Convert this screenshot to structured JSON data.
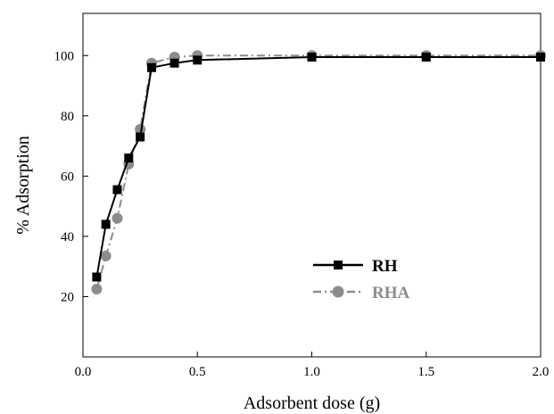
{
  "chart_data": {
    "type": "line",
    "title": "",
    "xlabel": "Adsorbent dose (g)",
    "ylabel": "% Adsorption",
    "xlim": [
      0.0,
      2.0
    ],
    "ylim": [
      0,
      114
    ],
    "xticks": [
      0.0,
      0.5,
      1.0,
      1.5,
      2.0
    ],
    "xtick_labels": [
      "0.0",
      "0.5",
      "1.0",
      "1.5",
      "2.0"
    ],
    "yticks": [
      20,
      40,
      60,
      80,
      100
    ],
    "ytick_labels": [
      "20",
      "40",
      "60",
      "80",
      "100"
    ],
    "grid": false,
    "legend_position": "lower-right",
    "series": [
      {
        "name": "RH",
        "color": "#000000",
        "marker": "square",
        "line_style": "solid",
        "x": [
          0.06,
          0.1,
          0.15,
          0.2,
          0.25,
          0.3,
          0.4,
          0.5,
          1.0,
          1.5,
          2.0
        ],
        "y": [
          26.5,
          44.0,
          55.5,
          66.0,
          73.0,
          96.0,
          97.5,
          98.5,
          99.5,
          99.5,
          99.5
        ]
      },
      {
        "name": "RHA",
        "color": "#8c8c8c",
        "marker": "circle",
        "line_style": "dashdot",
        "x": [
          0.06,
          0.1,
          0.15,
          0.2,
          0.25,
          0.3,
          0.4,
          0.5,
          1.0,
          1.5,
          2.0
        ],
        "y": [
          22.5,
          33.5,
          46.0,
          64.0,
          75.5,
          97.5,
          99.5,
          100.0,
          100.0,
          100.0,
          100.0
        ]
      }
    ]
  }
}
